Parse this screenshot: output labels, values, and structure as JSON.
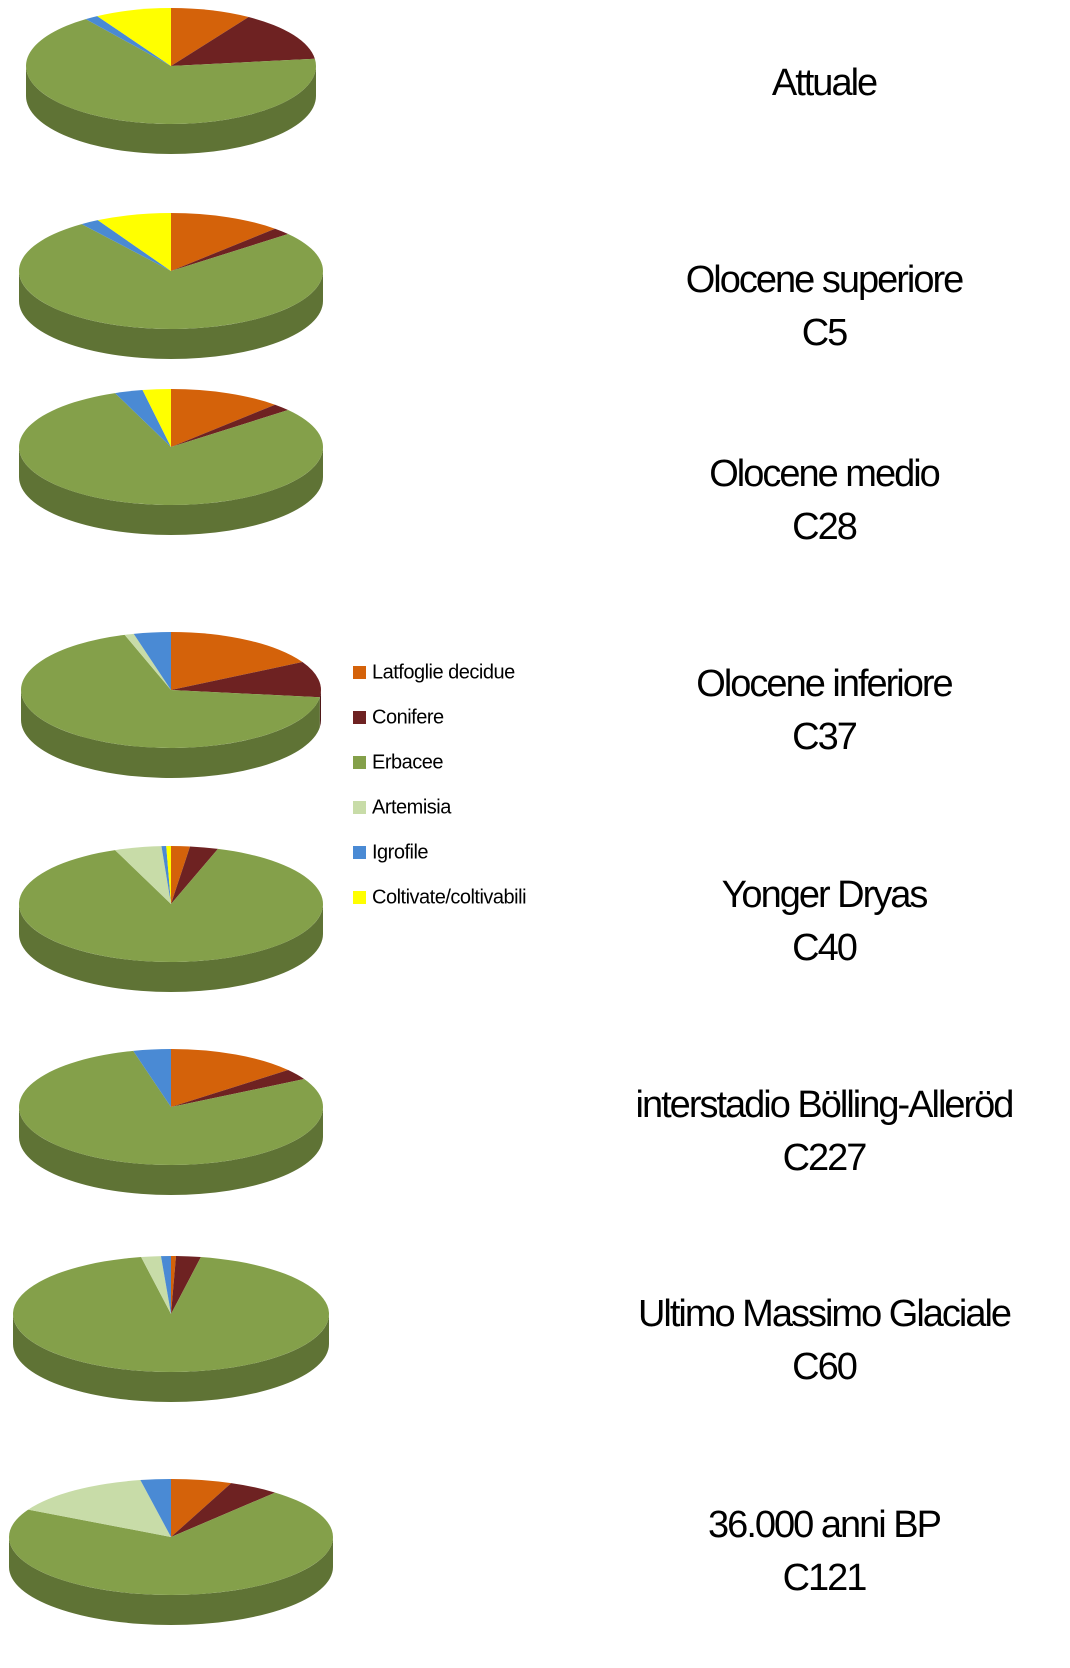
{
  "legend": {
    "categories": [
      "Latfoglie decidue",
      "Conifere",
      "Erbacee",
      "Artemisia",
      "Igrofile",
      "Coltivate/coltivabili"
    ],
    "colors": [
      "#d4620a",
      "#6e2222",
      "#84a04a",
      "#c8dca8",
      "#4a8ad4",
      "#ffff00"
    ]
  },
  "chart_data": [
    {
      "type": "pie",
      "title": "Attuale",
      "values": [
        9,
        14,
        67,
        0,
        1.5,
        8.5
      ]
    },
    {
      "type": "pie",
      "title": "Olocene superiore",
      "subtitle": "C5",
      "values": [
        12,
        2,
        76,
        0,
        2,
        8
      ]
    },
    {
      "type": "pie",
      "title": "Olocene medio",
      "subtitle": "C28",
      "values": [
        12,
        2,
        80,
        0,
        3,
        3
      ]
    },
    {
      "type": "pie",
      "title": "Olocene inferiore",
      "subtitle": "C37",
      "values": [
        17,
        10,
        68,
        1,
        4,
        0
      ]
    },
    {
      "type": "pie",
      "title": "Yonger Dryas",
      "subtitle": "C40",
      "values": [
        2,
        3,
        89,
        5,
        0.5,
        0.5
      ]
    },
    {
      "type": "pie",
      "title": "interstadio Bölling-Alleröd",
      "subtitle": "C227",
      "values": [
        14,
        3,
        79,
        0,
        4,
        0
      ]
    },
    {
      "type": "pie",
      "title": "Ultimo Massimo Glaciale",
      "subtitle": "C60",
      "values": [
        0.5,
        2.5,
        93,
        2,
        1,
        0
      ]
    },
    {
      "type": "pie",
      "title": "36.000 anni BP",
      "subtitle": "C121",
      "values": [
        6,
        5,
        71,
        14,
        3,
        0
      ]
    }
  ]
}
